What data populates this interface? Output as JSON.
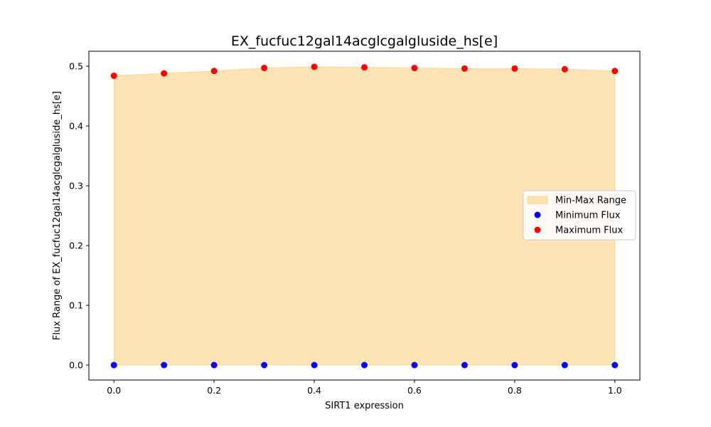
{
  "chart_data": {
    "type": "scatter",
    "title": "EX_fucfuc12gal14acglcgalgluside_hs[e]",
    "xlabel": "SIRT1 expression",
    "ylabel": "Flux Range of EX_fucfuc12gal14acglcgalgluside_hs[e]",
    "xlim": [
      -0.05,
      1.05
    ],
    "ylim": [
      -0.025,
      0.525
    ],
    "xticks": [
      0.0,
      0.2,
      0.4,
      0.6,
      0.8,
      1.0
    ],
    "xtick_labels": [
      "0.0",
      "0.2",
      "0.4",
      "0.6",
      "0.8",
      "1.0"
    ],
    "yticks": [
      0.0,
      0.1,
      0.2,
      0.3,
      0.4,
      0.5
    ],
    "ytick_labels": [
      "0.0",
      "0.1",
      "0.2",
      "0.3",
      "0.4",
      "0.5"
    ],
    "x": [
      0.0,
      0.1,
      0.2,
      0.3,
      0.4,
      0.5,
      0.6,
      0.7,
      0.8,
      0.9,
      1.0
    ],
    "series": [
      {
        "name": "Min-Max Range",
        "kind": "fill_between",
        "color": "#fcd48f",
        "opacity": 0.65,
        "lower_from": "Minimum Flux",
        "upper_from": "Maximum Flux"
      },
      {
        "name": "Minimum Flux",
        "kind": "scatter",
        "color": "#0000ff",
        "values": [
          0,
          0,
          0,
          0,
          0,
          0,
          0,
          0,
          0,
          0,
          0
        ]
      },
      {
        "name": "Maximum Flux",
        "kind": "scatter",
        "color": "#ff0000",
        "values": [
          0.484,
          0.488,
          0.492,
          0.497,
          0.499,
          0.498,
          0.497,
          0.496,
          0.496,
          0.495,
          0.492
        ]
      }
    ],
    "legend": {
      "placement": "center-right",
      "entries": [
        "Min-Max Range",
        "Minimum Flux",
        "Maximum Flux"
      ]
    },
    "grid": false
  }
}
